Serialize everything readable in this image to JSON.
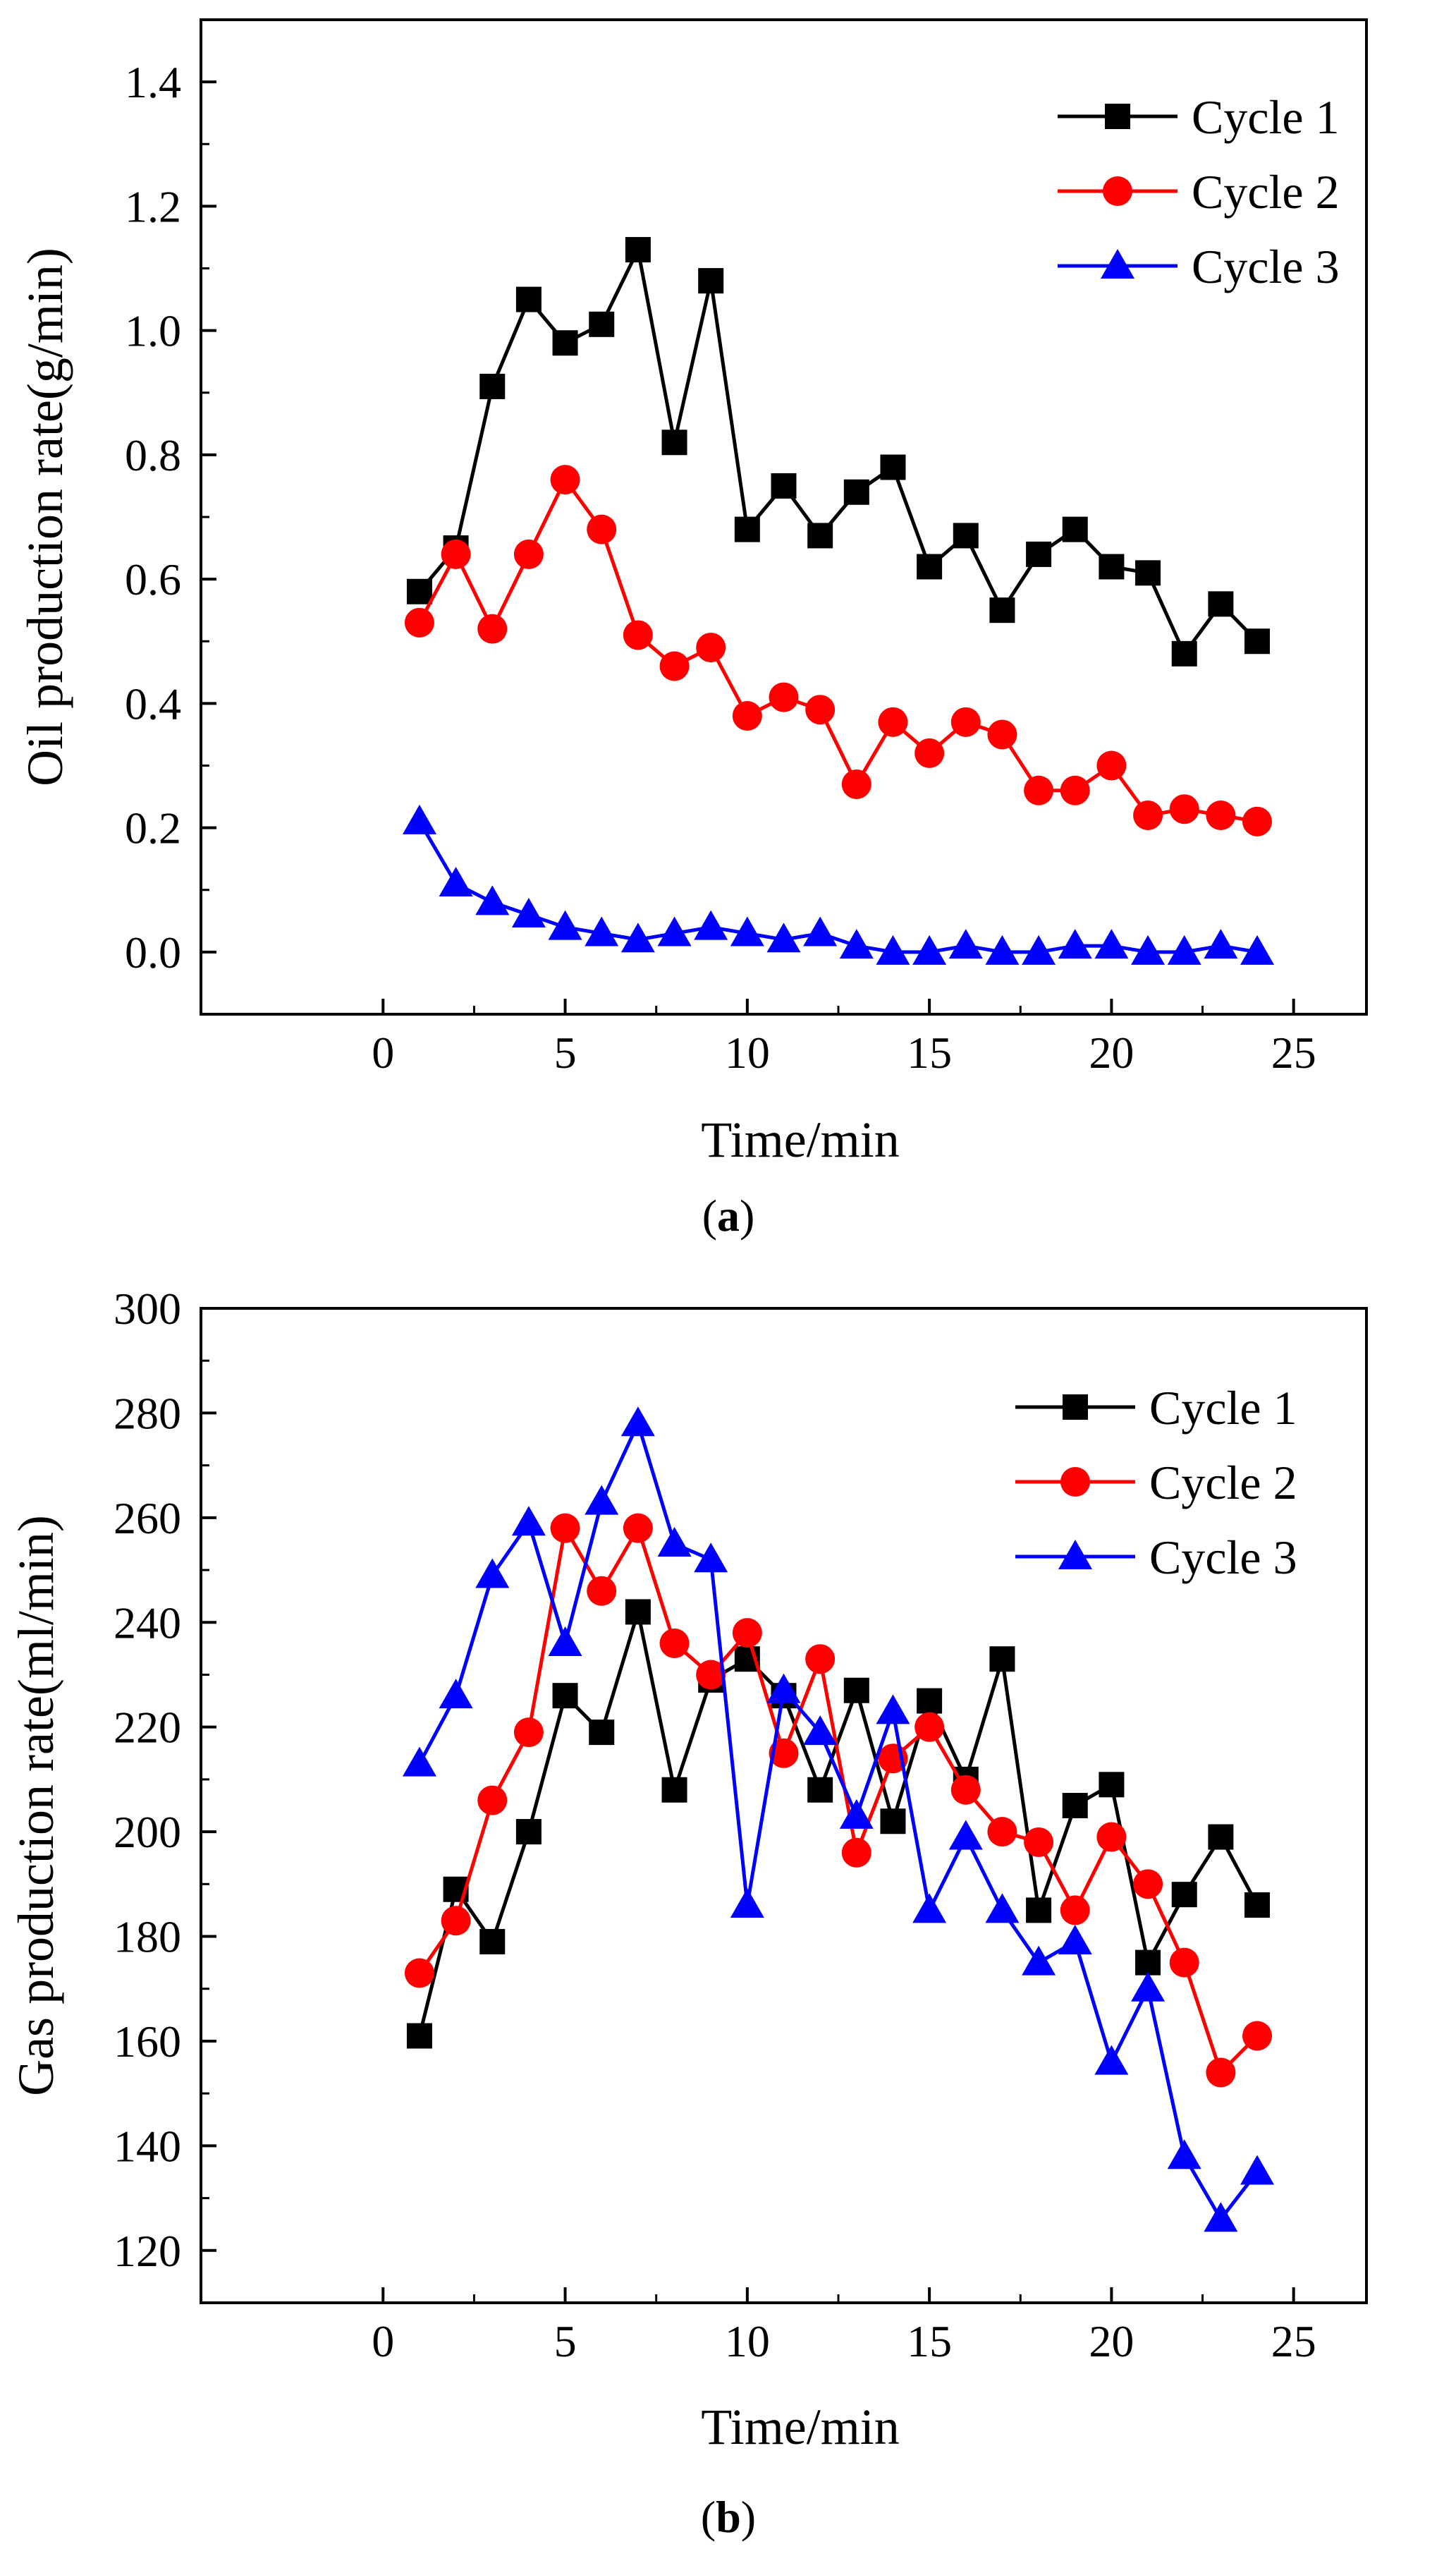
{
  "chart_data": [
    {
      "type": "line",
      "panel_label": "a",
      "xlabel": "Time/min",
      "ylabel": "Oil production rate(g/min)",
      "xlim": [
        -5,
        27
      ],
      "ylim": [
        -0.1,
        1.5
      ],
      "xticks": [
        0,
        5,
        10,
        15,
        20,
        25
      ],
      "xtick_labels": [
        "0",
        "5",
        "10",
        "15",
        "20",
        "25"
      ],
      "yticks": [
        0.0,
        0.2,
        0.4,
        0.6,
        0.8,
        1.0,
        1.2,
        1.4
      ],
      "ytick_labels": [
        "0.0",
        "0.2",
        "0.4",
        "0.6",
        "0.8",
        "1.0",
        "1.2",
        "1.4"
      ],
      "legend_position": "top-right",
      "x": [
        1,
        2,
        3,
        4,
        5,
        6,
        7,
        8,
        9,
        10,
        11,
        12,
        13,
        14,
        15,
        16,
        17,
        18,
        19,
        20,
        21,
        22,
        23,
        24
      ],
      "series": [
        {
          "name": "Cycle 1",
          "color": "#000000",
          "marker": "square",
          "values": [
            0.58,
            0.65,
            0.91,
            1.05,
            0.98,
            1.01,
            1.13,
            0.82,
            1.08,
            0.68,
            0.75,
            0.67,
            0.74,
            0.78,
            0.62,
            0.67,
            0.55,
            0.64,
            0.68,
            0.62,
            0.61,
            0.48,
            0.56,
            0.5
          ]
        },
        {
          "name": "Cycle 2",
          "color": "#ff0000",
          "marker": "circle",
          "values": [
            0.53,
            0.64,
            0.52,
            0.64,
            0.76,
            0.68,
            0.51,
            0.46,
            0.49,
            0.38,
            0.41,
            0.39,
            0.27,
            0.37,
            0.32,
            0.37,
            0.35,
            0.26,
            0.26,
            0.3,
            0.22,
            0.23,
            0.22,
            0.21
          ]
        },
        {
          "name": "Cycle 3",
          "color": "#0000ff",
          "marker": "triangle",
          "values": [
            0.21,
            0.11,
            0.08,
            0.06,
            0.04,
            0.03,
            0.02,
            0.03,
            0.04,
            0.03,
            0.02,
            0.03,
            0.01,
            0.0,
            0.0,
            0.01,
            0.0,
            0.0,
            0.01,
            0.01,
            0.0,
            0.0,
            0.01,
            0.0
          ]
        }
      ]
    },
    {
      "type": "line",
      "panel_label": "b",
      "xlabel": "Time/min",
      "ylabel": "Gas production rate(ml/min)",
      "xlim": [
        -5,
        27
      ],
      "ylim": [
        110,
        300
      ],
      "xticks": [
        0,
        5,
        10,
        15,
        20,
        25
      ],
      "xtick_labels": [
        "0",
        "5",
        "10",
        "15",
        "20",
        "25"
      ],
      "yticks": [
        120,
        140,
        160,
        180,
        200,
        220,
        240,
        260,
        280,
        300
      ],
      "ytick_labels": [
        "120",
        "140",
        "160",
        "180",
        "200",
        "220",
        "240",
        "260",
        "280",
        "300"
      ],
      "legend_position": "top-right",
      "x": [
        1,
        2,
        3,
        4,
        5,
        6,
        7,
        8,
        9,
        10,
        11,
        12,
        13,
        14,
        15,
        16,
        17,
        18,
        19,
        20,
        21,
        22,
        23,
        24
      ],
      "series": [
        {
          "name": "Cycle 1",
          "color": "#000000",
          "marker": "square",
          "values": [
            161,
            189,
            179,
            200,
            226,
            219,
            242,
            208,
            229,
            233,
            226,
            208,
            227,
            202,
            225,
            210,
            233,
            185,
            205,
            209,
            175,
            188,
            199,
            186
          ]
        },
        {
          "name": "Cycle 2",
          "color": "#ff0000",
          "marker": "circle",
          "values": [
            173,
            183,
            206,
            219,
            258,
            246,
            258,
            236,
            230,
            238,
            215,
            233,
            196,
            214,
            220,
            208,
            200,
            198,
            185,
            199,
            190,
            175,
            154,
            161
          ]
        },
        {
          "name": "Cycle 3",
          "color": "#0000ff",
          "marker": "triangle",
          "values": [
            213,
            226,
            249,
            259,
            236,
            263,
            278,
            255,
            252,
            186,
            227,
            219,
            203,
            223,
            185,
            199,
            185,
            175,
            179,
            156,
            170,
            138,
            126,
            135
          ]
        }
      ]
    }
  ]
}
